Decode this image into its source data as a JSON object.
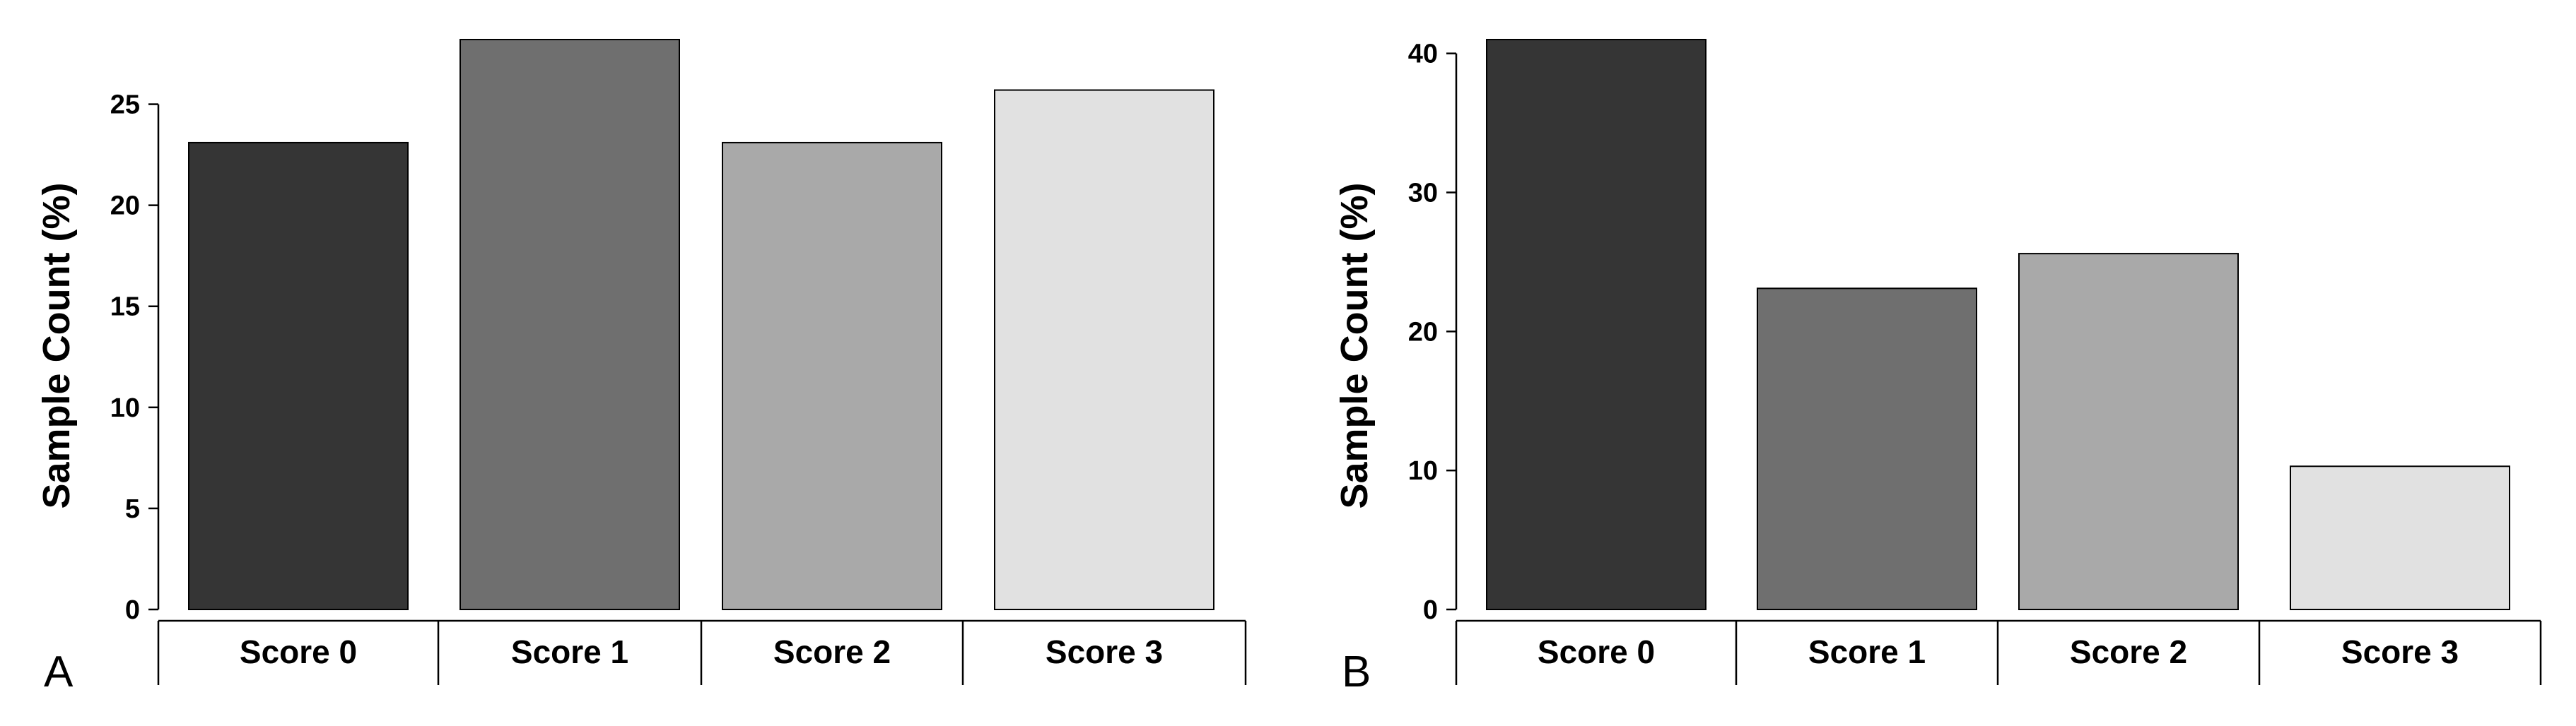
{
  "colors": {
    "score0": "#353535",
    "score1": "#6f6f6f",
    "score2": "#a9a9a9",
    "score3": "#e1e1e1",
    "axis": "#000000",
    "bar_outline": "#000000"
  },
  "chart_data": [
    {
      "panel": "A",
      "type": "bar",
      "title": "",
      "xlabel": "",
      "ylabel": "Sample Count (%)",
      "categories": [
        "Score 0",
        "Score 1",
        "Score 2",
        "Score 3"
      ],
      "values": [
        23.1,
        28.2,
        23.1,
        25.7
      ],
      "ylim": [
        0,
        28.2
      ],
      "yticks": [
        0,
        5,
        10,
        15,
        20,
        25
      ],
      "grid": false,
      "legend": "none"
    },
    {
      "panel": "B",
      "type": "bar",
      "title": "",
      "xlabel": "",
      "ylabel": "Sample Count (%)",
      "categories": [
        "Score 0",
        "Score 1",
        "Score 2",
        "Score 3"
      ],
      "values": [
        41.0,
        23.1,
        25.6,
        10.3
      ],
      "ylim": [
        0,
        41.0
      ],
      "yticks": [
        0,
        10,
        20,
        30,
        40
      ],
      "grid": false,
      "legend": "none"
    }
  ]
}
